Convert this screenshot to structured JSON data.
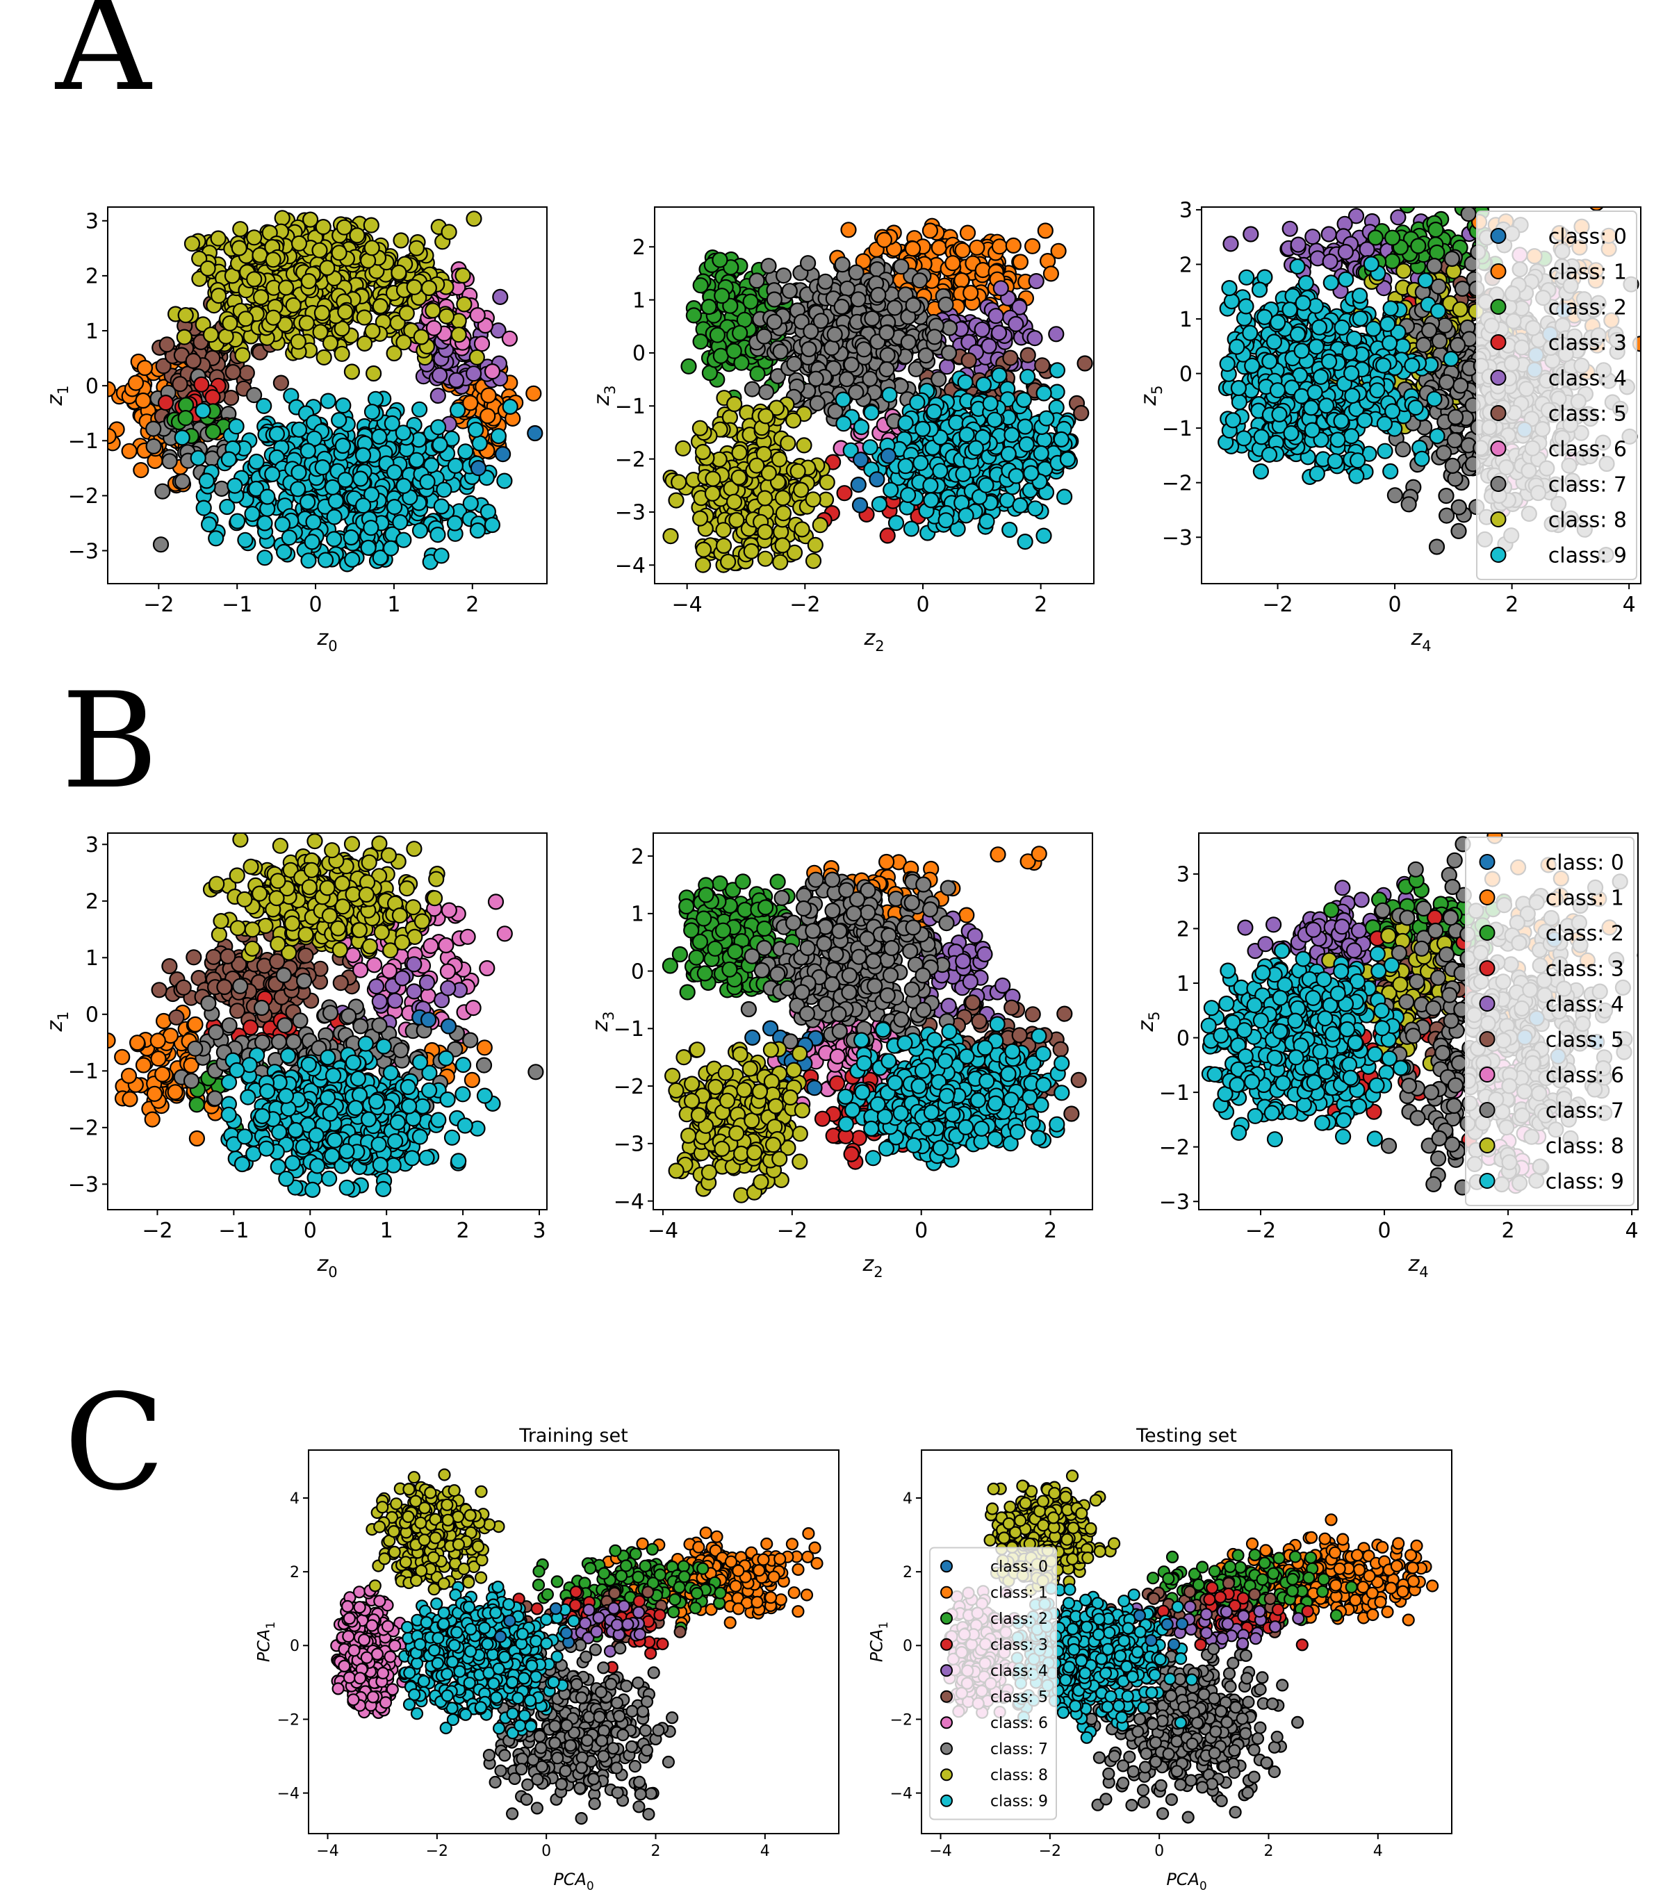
{
  "panel_letters": {
    "a": "A",
    "b": "B",
    "c": "C"
  },
  "class_colors": [
    "#1f77b4",
    "#ff7f0e",
    "#2ca02c",
    "#d62728",
    "#9467bd",
    "#8c564b",
    "#e377c2",
    "#7f7f7f",
    "#bcbd22",
    "#17becf"
  ],
  "legend_labels": [
    "class: 0",
    "class: 1",
    "class: 2",
    "class: 3",
    "class: 4",
    "class: 5",
    "class: 6",
    "class: 7",
    "class: 8",
    "class: 9"
  ],
  "chart_data": [
    {
      "id": "A1",
      "type": "scatter",
      "panel": "A",
      "xlabel": {
        "base": "z",
        "sub": "0"
      },
      "ylabel": {
        "base": "z",
        "sub": "1"
      },
      "xlim": [
        -2.65,
        2.95
      ],
      "ylim": [
        -3.6,
        3.25
      ],
      "xticks": [
        -2,
        -1,
        0,
        1,
        2
      ],
      "yticks": [
        -3,
        -2,
        -1,
        0,
        1,
        2,
        3
      ],
      "legend": null,
      "clusters": [
        {
          "cls": 1,
          "n": 90,
          "cx": -1.95,
          "cy": -0.5,
          "sx": 0.3,
          "sy": 0.55
        },
        {
          "cls": 1,
          "n": 60,
          "cx": 2.15,
          "cy": -0.5,
          "sx": 0.25,
          "sy": 0.35
        },
        {
          "cls": 5,
          "n": 90,
          "cx": -1.4,
          "cy": 0.45,
          "sx": 0.3,
          "sy": 0.45
        },
        {
          "cls": 4,
          "n": 60,
          "cx": 1.75,
          "cy": 0.45,
          "sx": 0.25,
          "sy": 0.4
        },
        {
          "cls": 6,
          "n": 50,
          "cx": 1.75,
          "cy": 1.3,
          "sx": 0.25,
          "sy": 0.35
        },
        {
          "cls": 7,
          "n": 60,
          "cx": -1.6,
          "cy": -1.0,
          "sx": 0.25,
          "sy": 0.45
        },
        {
          "cls": 3,
          "n": 12,
          "cx": -1.5,
          "cy": -0.3,
          "sx": 0.25,
          "sy": 0.2
        },
        {
          "cls": 2,
          "n": 10,
          "cx": -1.5,
          "cy": -0.6,
          "sx": 0.25,
          "sy": 0.2
        },
        {
          "cls": 8,
          "n": 600,
          "cx": 0.0,
          "cy": 1.8,
          "sx": 0.85,
          "sy": 0.6,
          "xmin": -1.8,
          "xmax": 2.1,
          "ymin": 0.2,
          "ymax": 3.1
        },
        {
          "cls": 9,
          "n": 650,
          "cx": 0.45,
          "cy": -1.75,
          "sx": 0.85,
          "sy": 0.7,
          "xmin": -1.7,
          "xmax": 2.5,
          "ymin": -3.25,
          "ymax": -0.1
        },
        {
          "cls": 0,
          "n": 3,
          "cx": 2.4,
          "cy": -0.8,
          "sx": 0.2,
          "sy": 0.5
        }
      ]
    },
    {
      "id": "A2",
      "type": "scatter",
      "panel": "A",
      "xlabel": {
        "base": "z",
        "sub": "2"
      },
      "ylabel": {
        "base": "z",
        "sub": "3"
      },
      "xlim": [
        -4.55,
        2.9
      ],
      "ylim": [
        -4.35,
        2.75
      ],
      "xticks": [
        -4,
        -2,
        0,
        2
      ],
      "yticks": [
        -4,
        -3,
        -2,
        -1,
        0,
        1,
        2
      ],
      "legend": null,
      "clusters": [
        {
          "cls": 2,
          "n": 200,
          "cx": -3.1,
          "cy": 0.7,
          "sx": 0.45,
          "sy": 0.6,
          "xmin": -4.0,
          "xmax": -1.8,
          "ymin": -0.9,
          "ymax": 1.8
        },
        {
          "cls": 1,
          "n": 150,
          "cx": 0.4,
          "cy": 1.6,
          "sx": 0.8,
          "sy": 0.45,
          "xmin": -1.5,
          "xmax": 2.3,
          "ymin": 0.5,
          "ymax": 2.4
        },
        {
          "cls": 4,
          "n": 80,
          "cx": 1.0,
          "cy": 0.2,
          "sx": 0.5,
          "sy": 0.4
        },
        {
          "cls": 5,
          "n": 70,
          "cx": 1.3,
          "cy": -0.7,
          "sx": 0.6,
          "sy": 0.35
        },
        {
          "cls": 6,
          "n": 30,
          "cx": -0.3,
          "cy": -1.5,
          "sx": 0.5,
          "sy": 0.3
        },
        {
          "cls": 3,
          "n": 20,
          "cx": -0.5,
          "cy": -2.8,
          "sx": 0.5,
          "sy": 0.3
        },
        {
          "cls": 7,
          "n": 450,
          "cx": -1.2,
          "cy": 0.3,
          "sx": 0.75,
          "sy": 0.75,
          "xmin": -2.9,
          "xmax": 0.5,
          "ymin": -1.3,
          "ymax": 1.7
        },
        {
          "cls": 8,
          "n": 300,
          "cx": -3.0,
          "cy": -2.6,
          "sx": 0.6,
          "sy": 0.75,
          "xmin": -4.3,
          "xmax": -1.6,
          "ymin": -4.05,
          "ymax": -0.6
        },
        {
          "cls": 9,
          "n": 500,
          "cx": 0.9,
          "cy": -1.9,
          "sx": 0.8,
          "sy": 0.6,
          "xmin": -1.6,
          "xmax": 2.6,
          "ymin": -3.8,
          "ymax": -0.3
        },
        {
          "cls": 0,
          "n": 5,
          "cx": -1.0,
          "cy": -2.2,
          "sx": 0.3,
          "sy": 0.3
        }
      ]
    },
    {
      "id": "A3",
      "type": "scatter",
      "panel": "A",
      "xlabel": {
        "base": "z",
        "sub": "4"
      },
      "ylabel": {
        "base": "z",
        "sub": "5"
      },
      "xlim": [
        -3.3,
        4.2
      ],
      "ylim": [
        -3.85,
        3.05
      ],
      "xticks": [
        -2,
        0,
        2,
        4
      ],
      "yticks": [
        -3,
        -2,
        -1,
        0,
        1,
        2,
        3
      ],
      "legend": "upper right",
      "clusters": [
        {
          "cls": 4,
          "n": 80,
          "cx": -0.6,
          "cy": 2.2,
          "sx": 0.7,
          "sy": 0.35
        },
        {
          "cls": 2,
          "n": 70,
          "cx": 0.7,
          "cy": 2.3,
          "sx": 0.6,
          "sy": 0.3
        },
        {
          "cls": 5,
          "n": 40,
          "cx": 1.2,
          "cy": 1.0,
          "sx": 0.4,
          "sy": 0.5
        },
        {
          "cls": 6,
          "n": 40,
          "cx": 2.2,
          "cy": -0.2,
          "sx": 0.4,
          "sy": 1.2
        },
        {
          "cls": 3,
          "n": 20,
          "cx": 1.0,
          "cy": 0.5,
          "sx": 0.4,
          "sy": 0.6
        },
        {
          "cls": 8,
          "n": 120,
          "cx": 0.6,
          "cy": 0.6,
          "sx": 0.5,
          "sy": 0.6
        },
        {
          "cls": 1,
          "n": 40,
          "cx": 2.8,
          "cy": 1.6,
          "sx": 0.6,
          "sy": 0.8
        },
        {
          "cls": 7,
          "n": 450,
          "cx": 1.9,
          "cy": -0.4,
          "sx": 0.9,
          "sy": 1.2,
          "xmin": 0.0,
          "xmax": 4.1,
          "ymin": -3.4,
          "ymax": 3.0
        },
        {
          "cls": 9,
          "n": 550,
          "cx": -1.3,
          "cy": -0.1,
          "sx": 0.85,
          "sy": 0.85,
          "xmin": -2.9,
          "xmax": 1.0,
          "ymin": -1.95,
          "ymax": 2.1
        },
        {
          "cls": 0,
          "n": 5,
          "cx": 2.5,
          "cy": 0.5,
          "sx": 0.6,
          "sy": 0.8
        }
      ]
    },
    {
      "id": "B1",
      "type": "scatter",
      "panel": "B",
      "xlabel": {
        "base": "z",
        "sub": "0"
      },
      "ylabel": {
        "base": "z",
        "sub": "1"
      },
      "xlim": [
        -2.65,
        3.1
      ],
      "ylim": [
        -3.45,
        3.2
      ],
      "xticks": [
        -2,
        -1,
        0,
        1,
        2,
        3
      ],
      "yticks": [
        -3,
        -2,
        -1,
        0,
        1,
        2,
        3
      ],
      "legend": null,
      "clusters": [
        {
          "cls": 1,
          "n": 70,
          "cx": -1.95,
          "cy": -1.0,
          "sx": 0.3,
          "sy": 0.4
        },
        {
          "cls": 1,
          "n": 10,
          "cx": 1.9,
          "cy": -0.8,
          "sx": 0.2,
          "sy": 0.3
        },
        {
          "cls": 5,
          "n": 120,
          "cx": -0.7,
          "cy": 0.6,
          "sx": 0.6,
          "sy": 0.35
        },
        {
          "cls": 6,
          "n": 80,
          "cx": 1.3,
          "cy": 1.0,
          "sx": 0.55,
          "sy": 0.6
        },
        {
          "cls": 4,
          "n": 20,
          "cx": 1.2,
          "cy": 0.2,
          "sx": 0.4,
          "sy": 0.3
        },
        {
          "cls": 3,
          "n": 20,
          "cx": -0.7,
          "cy": -0.4,
          "sx": 0.5,
          "sy": 0.2
        },
        {
          "cls": 2,
          "n": 15,
          "cx": -1.0,
          "cy": -1.3,
          "sx": 0.4,
          "sy": 0.3
        },
        {
          "cls": 7,
          "n": 130,
          "cx": 0.0,
          "cy": -0.6,
          "sx": 1.0,
          "sy": 0.4
        },
        {
          "cls": 8,
          "n": 350,
          "cx": 0.2,
          "cy": 2.0,
          "sx": 0.6,
          "sy": 0.45,
          "xmin": -1.3,
          "xmax": 1.7,
          "ymin": 1.0,
          "ymax": 3.1
        },
        {
          "cls": 9,
          "n": 450,
          "cx": 0.3,
          "cy": -1.85,
          "sx": 0.75,
          "sy": 0.55,
          "xmin": -1.1,
          "xmax": 2.4,
          "ymin": -3.15,
          "ymax": -0.4
        },
        {
          "cls": 0,
          "n": 3,
          "cx": 1.6,
          "cy": 0.0,
          "sx": 0.1,
          "sy": 0.2
        }
      ]
    },
    {
      "id": "B2",
      "type": "scatter",
      "panel": "B",
      "xlabel": {
        "base": "z",
        "sub": "2"
      },
      "ylabel": {
        "base": "z",
        "sub": "3"
      },
      "xlim": [
        -4.15,
        2.65
      ],
      "ylim": [
        -4.15,
        2.4
      ],
      "xticks": [
        -4,
        -2,
        0,
        2
      ],
      "yticks": [
        -4,
        -3,
        -2,
        -1,
        0,
        1,
        2
      ],
      "legend": null,
      "clusters": [
        {
          "cls": 2,
          "n": 180,
          "cx": -2.9,
          "cy": 0.6,
          "sx": 0.45,
          "sy": 0.5,
          "xmin": -3.9,
          "xmax": -1.7,
          "ymin": -0.8,
          "ymax": 1.7
        },
        {
          "cls": 1,
          "n": 60,
          "cx": -0.7,
          "cy": 1.3,
          "sx": 0.5,
          "sy": 0.35
        },
        {
          "cls": 1,
          "n": 4,
          "cx": 1.5,
          "cy": 1.9,
          "sx": 0.3,
          "sy": 0.15
        },
        {
          "cls": 4,
          "n": 60,
          "cx": 0.6,
          "cy": -0.2,
          "sx": 0.35,
          "sy": 0.5
        },
        {
          "cls": 5,
          "n": 80,
          "cx": 1.2,
          "cy": -1.4,
          "sx": 0.5,
          "sy": 0.4
        },
        {
          "cls": 6,
          "n": 80,
          "cx": -1.2,
          "cy": -1.4,
          "sx": 0.5,
          "sy": 0.4
        },
        {
          "cls": 3,
          "n": 50,
          "cx": -0.9,
          "cy": -2.4,
          "sx": 0.4,
          "sy": 0.4
        },
        {
          "cls": 0,
          "n": 15,
          "cx": -2.1,
          "cy": -1.5,
          "sx": 0.3,
          "sy": 0.3
        },
        {
          "cls": 7,
          "n": 350,
          "cx": -1.0,
          "cy": 0.2,
          "sx": 0.7,
          "sy": 0.7,
          "xmin": -2.7,
          "xmax": 0.5,
          "ymin": -1.3,
          "ymax": 1.6
        },
        {
          "cls": 8,
          "n": 250,
          "cx": -2.8,
          "cy": -2.6,
          "sx": 0.55,
          "sy": 0.6,
          "xmin": -3.9,
          "xmax": -1.8,
          "ymin": -3.9,
          "ymax": -1.3
        },
        {
          "cls": 9,
          "n": 400,
          "cx": 0.5,
          "cy": -2.2,
          "sx": 0.75,
          "sy": 0.5,
          "xmin": -1.3,
          "xmax": 2.3,
          "ymin": -3.4,
          "ymax": -0.9
        }
      ]
    },
    {
      "id": "B3",
      "type": "scatter",
      "panel": "B",
      "xlabel": {
        "base": "z",
        "sub": "4"
      },
      "ylabel": {
        "base": "z",
        "sub": "5"
      },
      "xlim": [
        -3.0,
        4.1
      ],
      "ylim": [
        -3.15,
        3.75
      ],
      "xticks": [
        -2,
        0,
        2,
        4
      ],
      "yticks": [
        -3,
        -2,
        -1,
        0,
        1,
        2,
        3
      ],
      "legend": "upper right",
      "clusters": [
        {
          "cls": 4,
          "n": 90,
          "cx": -0.6,
          "cy": 1.8,
          "sx": 0.6,
          "sy": 0.4
        },
        {
          "cls": 2,
          "n": 70,
          "cx": 0.6,
          "cy": 2.0,
          "sx": 0.5,
          "sy": 0.35
        },
        {
          "cls": 3,
          "n": 50,
          "cx": 0.3,
          "cy": 0.2,
          "sx": 0.5,
          "sy": 0.9
        },
        {
          "cls": 5,
          "n": 30,
          "cx": 0.8,
          "cy": 1.0,
          "sx": 0.4,
          "sy": 0.5
        },
        {
          "cls": 6,
          "n": 40,
          "cx": 2.0,
          "cy": -1.5,
          "sx": 0.4,
          "sy": 0.7
        },
        {
          "cls": 8,
          "n": 80,
          "cx": 0.3,
          "cy": 0.9,
          "sx": 0.4,
          "sy": 0.5
        },
        {
          "cls": 1,
          "n": 30,
          "cx": 2.6,
          "cy": 2.0,
          "sx": 0.6,
          "sy": 0.7
        },
        {
          "cls": 7,
          "n": 400,
          "cx": 1.7,
          "cy": 0.0,
          "sx": 0.9,
          "sy": 1.3,
          "xmin": -0.2,
          "xmax": 3.9,
          "ymin": -2.8,
          "ymax": 3.6
        },
        {
          "cls": 9,
          "n": 450,
          "cx": -1.3,
          "cy": 0.0,
          "sx": 0.75,
          "sy": 0.75,
          "xmin": -2.9,
          "xmax": 0.3,
          "ymin": -1.9,
          "ymax": 1.7
        },
        {
          "cls": 0,
          "n": 5,
          "cx": 2.5,
          "cy": 0.5,
          "sx": 0.5,
          "sy": 0.8
        }
      ]
    },
    {
      "id": "C1",
      "type": "scatter",
      "panel": "C",
      "title": "Training set",
      "xlabel": {
        "base": "PCA",
        "sub": "0"
      },
      "ylabel": {
        "base": "PCA",
        "sub": "1"
      },
      "xlim": [
        -4.35,
        5.35
      ],
      "ylim": [
        -5.1,
        5.3
      ],
      "xticks": [
        -4,
        -2,
        0,
        2,
        4
      ],
      "yticks": [
        -4,
        -2,
        0,
        2,
        4
      ],
      "legend": null,
      "clusters": [
        {
          "cls": 1,
          "n": 250,
          "cx": 3.2,
          "cy": 1.8,
          "sx": 0.85,
          "sy": 0.55,
          "xmin": 1.0,
          "xmax": 5.0,
          "ymin": 0.5,
          "ymax": 3.6
        },
        {
          "cls": 2,
          "n": 150,
          "cx": 1.5,
          "cy": 1.5,
          "sx": 0.75,
          "sy": 0.45
        },
        {
          "cls": 5,
          "n": 60,
          "cx": 1.0,
          "cy": 0.8,
          "sx": 0.8,
          "sy": 0.35
        },
        {
          "cls": 3,
          "n": 40,
          "cx": 1.5,
          "cy": 0.7,
          "sx": 0.6,
          "sy": 0.4
        },
        {
          "cls": 4,
          "n": 30,
          "cx": 1.2,
          "cy": 0.5,
          "sx": 0.6,
          "sy": 0.3
        },
        {
          "cls": 6,
          "n": 250,
          "cx": -3.3,
          "cy": -0.2,
          "sx": 0.3,
          "sy": 0.8,
          "xmin": -3.85,
          "xmax": -2.2,
          "ymin": -1.9,
          "ymax": 1.5
        },
        {
          "cls": 8,
          "n": 300,
          "cx": -2.1,
          "cy": 3.0,
          "sx": 0.5,
          "sy": 0.7,
          "xmin": -3.2,
          "xmax": -0.8,
          "ymin": 1.5,
          "ymax": 4.7
        },
        {
          "cls": 7,
          "n": 400,
          "cx": 0.5,
          "cy": -2.3,
          "sx": 0.75,
          "sy": 1.0,
          "xmin": -1.4,
          "xmax": 2.7,
          "ymin": -4.7,
          "ymax": 0.3
        },
        {
          "cls": 9,
          "n": 500,
          "cx": -1.3,
          "cy": -0.3,
          "sx": 0.75,
          "sy": 0.8,
          "xmin": -2.6,
          "xmax": 0.6,
          "ymin": -2.5,
          "ymax": 1.6
        },
        {
          "cls": 0,
          "n": 5,
          "cx": 0.0,
          "cy": 0.5,
          "sx": 0.5,
          "sy": 0.5
        }
      ]
    },
    {
      "id": "C2",
      "type": "scatter",
      "panel": "C",
      "title": "Testing set",
      "xlabel": {
        "base": "PCA",
        "sub": "0"
      },
      "ylabel": {
        "base": "PCA",
        "sub": "1"
      },
      "xlim": [
        -4.35,
        5.35
      ],
      "ylim": [
        -5.1,
        5.3
      ],
      "xticks": [
        -4,
        -2,
        0,
        2,
        4
      ],
      "yticks": [
        -4,
        -2,
        0,
        2,
        4
      ],
      "legend": "center left",
      "clusters": [
        {
          "cls": 1,
          "n": 250,
          "cx": 3.2,
          "cy": 1.8,
          "sx": 0.85,
          "sy": 0.55,
          "xmin": 1.0,
          "xmax": 5.0,
          "ymin": 0.5,
          "ymax": 3.6
        },
        {
          "cls": 2,
          "n": 150,
          "cx": 1.5,
          "cy": 1.5,
          "sx": 0.75,
          "sy": 0.45
        },
        {
          "cls": 5,
          "n": 60,
          "cx": 1.0,
          "cy": 0.8,
          "sx": 0.8,
          "sy": 0.35
        },
        {
          "cls": 3,
          "n": 40,
          "cx": 1.5,
          "cy": 0.7,
          "sx": 0.6,
          "sy": 0.4
        },
        {
          "cls": 4,
          "n": 30,
          "cx": 1.2,
          "cy": 0.5,
          "sx": 0.6,
          "sy": 0.3
        },
        {
          "cls": 6,
          "n": 250,
          "cx": -3.3,
          "cy": -0.2,
          "sx": 0.3,
          "sy": 0.8,
          "xmin": -3.85,
          "xmax": -2.2,
          "ymin": -1.9,
          "ymax": 1.5
        },
        {
          "cls": 8,
          "n": 300,
          "cx": -2.1,
          "cy": 3.0,
          "sx": 0.5,
          "sy": 0.7,
          "xmin": -3.2,
          "xmax": -0.8,
          "ymin": 1.5,
          "ymax": 4.7
        },
        {
          "cls": 7,
          "n": 400,
          "cx": 0.5,
          "cy": -2.3,
          "sx": 0.75,
          "sy": 1.0,
          "xmin": -1.4,
          "xmax": 2.7,
          "ymin": -4.7,
          "ymax": 0.3
        },
        {
          "cls": 9,
          "n": 500,
          "cx": -1.3,
          "cy": -0.3,
          "sx": 0.75,
          "sy": 0.8,
          "xmin": -2.6,
          "xmax": 0.6,
          "ymin": -2.5,
          "ymax": 1.6
        },
        {
          "cls": 0,
          "n": 5,
          "cx": 0.0,
          "cy": 0.5,
          "sx": 0.5,
          "sy": 0.5
        }
      ]
    }
  ]
}
